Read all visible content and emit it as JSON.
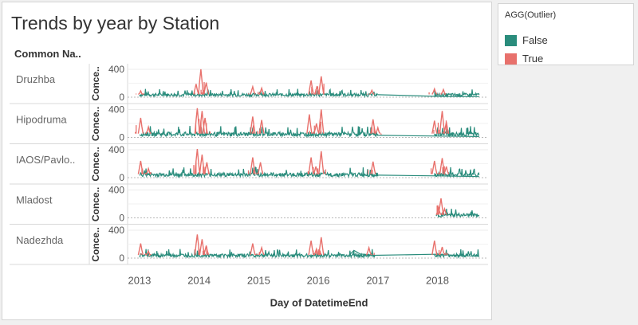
{
  "dashboard": {
    "title": "Trends by year by Station",
    "row_header": "Common Na.."
  },
  "legend": {
    "title": "AGG(Outlier)",
    "items": [
      {
        "label": "False",
        "color": "#2a8c7c"
      },
      {
        "label": "True",
        "color": "#e8716c"
      }
    ]
  },
  "chart_data": {
    "type": "line",
    "title": "Trends by year by Station",
    "xlabel": "Day of DatetimeEnd",
    "ylabel": "Conce..",
    "x_ticks": [
      "2013",
      "2014",
      "2015",
      "2016",
      "2017",
      "2018"
    ],
    "y_ticks": [
      0,
      400
    ],
    "ylim": [
      0,
      460
    ],
    "grid": true,
    "legend_position": "top-right",
    "series_colors": {
      "False": "#2a8c7c",
      "True": "#e8716c"
    },
    "panels": [
      {
        "station": "Druzhba",
        "segments": [
          [
            2013.0,
            2017.0
          ],
          [
            2017.95,
            2018.7
          ]
        ],
        "peaks": [
          [
            2013.02,
            90
          ],
          [
            2013.95,
            190
          ],
          [
            2014.03,
            400
          ],
          [
            2014.12,
            210
          ],
          [
            2014.9,
            150
          ],
          [
            2015.05,
            130
          ],
          [
            2015.88,
            240
          ],
          [
            2016.05,
            300
          ],
          [
            2015.98,
            160
          ],
          [
            2016.9,
            100
          ],
          [
            2017.95,
            120
          ],
          [
            2018.1,
            110
          ]
        ],
        "baseline": 40,
        "tail": [
          [
            2017.0,
            35
          ],
          [
            2018.0,
            12
          ],
          [
            2018.7,
            8
          ]
        ]
      },
      {
        "station": "Hipodruma",
        "segments": [
          [
            2013.0,
            2017.0
          ],
          [
            2017.95,
            2018.7
          ]
        ],
        "peaks": [
          [
            2013.02,
            280
          ],
          [
            2013.15,
            150
          ],
          [
            2013.97,
            420
          ],
          [
            2014.05,
            380
          ],
          [
            2014.1,
            280
          ],
          [
            2014.9,
            300
          ],
          [
            2015.05,
            250
          ],
          [
            2015.85,
            330
          ],
          [
            2016.05,
            400
          ],
          [
            2015.97,
            200
          ],
          [
            2016.92,
            260
          ],
          [
            2017.0,
            140
          ],
          [
            2017.95,
            240
          ],
          [
            2018.08,
            380
          ],
          [
            2018.15,
            220
          ]
        ],
        "baseline": 55,
        "tail": [
          [
            2017.0,
            30
          ],
          [
            2018.0,
            20
          ],
          [
            2018.7,
            12
          ]
        ]
      },
      {
        "station": "IAOS/Pavlo..",
        "segments": [
          [
            2013.0,
            2017.0
          ],
          [
            2017.95,
            2018.7
          ]
        ],
        "peaks": [
          [
            2013.02,
            240
          ],
          [
            2013.15,
            130
          ],
          [
            2013.97,
            410
          ],
          [
            2014.05,
            330
          ],
          [
            2014.13,
            220
          ],
          [
            2014.9,
            290
          ],
          [
            2015.03,
            220
          ],
          [
            2015.88,
            290
          ],
          [
            2016.05,
            380
          ],
          [
            2015.96,
            160
          ],
          [
            2016.92,
            230
          ],
          [
            2017.95,
            240
          ],
          [
            2018.08,
            280
          ],
          [
            2018.15,
            160
          ]
        ],
        "baseline": 50,
        "tail": [
          [
            2017.0,
            35
          ],
          [
            2018.0,
            25
          ],
          [
            2018.7,
            15
          ]
        ]
      },
      {
        "station": "Mladost",
        "segments": [
          [
            2017.98,
            2018.7
          ]
        ],
        "peaks": [
          [
            2018.02,
            140
          ],
          [
            2018.06,
            280
          ],
          [
            2018.12,
            130
          ]
        ],
        "baseline": 45,
        "tail": []
      },
      {
        "station": "Nadezhda",
        "segments": [
          [
            2013.0,
            2016.95
          ],
          [
            2017.95,
            2018.7
          ]
        ],
        "peaks": [
          [
            2013.02,
            210
          ],
          [
            2013.15,
            100
          ],
          [
            2013.97,
            340
          ],
          [
            2014.05,
            270
          ],
          [
            2014.12,
            180
          ],
          [
            2014.9,
            210
          ],
          [
            2015.05,
            150
          ],
          [
            2015.88,
            250
          ],
          [
            2016.05,
            300
          ],
          [
            2015.97,
            130
          ],
          [
            2016.85,
            150
          ],
          [
            2017.95,
            250
          ],
          [
            2018.08,
            160
          ]
        ],
        "baseline": 45,
        "tail": [
          [
            2016.5,
            30
          ],
          [
            2016.6,
            110
          ],
          [
            2016.7,
            60
          ],
          [
            2016.95,
            40
          ],
          [
            2017.95,
            55
          ],
          [
            2018.7,
            25
          ]
        ]
      }
    ]
  }
}
